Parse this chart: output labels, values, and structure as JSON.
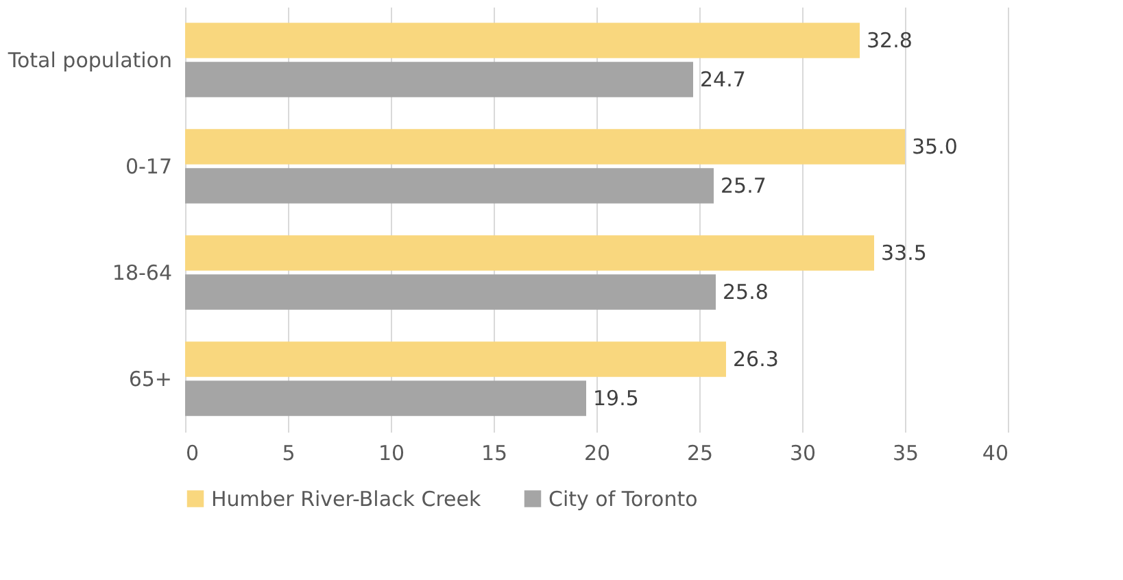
{
  "chart_data": {
    "type": "bar",
    "orientation": "horizontal",
    "categories": [
      "Total population",
      "0-17",
      "18-64",
      "65+"
    ],
    "series": [
      {
        "name": "Humber River-Black Creek",
        "color": "#f9d77e",
        "values": [
          32.8,
          35.0,
          33.5,
          26.3
        ],
        "value_labels": [
          "32.8",
          "35.0",
          "33.5",
          "26.3"
        ]
      },
      {
        "name": "City of Toronto",
        "color": "#a5a5a5",
        "values": [
          24.7,
          25.7,
          25.8,
          19.5
        ],
        "value_labels": [
          "24.7",
          "25.7",
          "25.8",
          "19.5"
        ]
      }
    ],
    "xlim": [
      0,
      40
    ],
    "xticks": [
      0,
      5,
      10,
      15,
      20,
      25,
      30,
      35,
      40
    ],
    "grid": "x",
    "legend": "bottom"
  }
}
